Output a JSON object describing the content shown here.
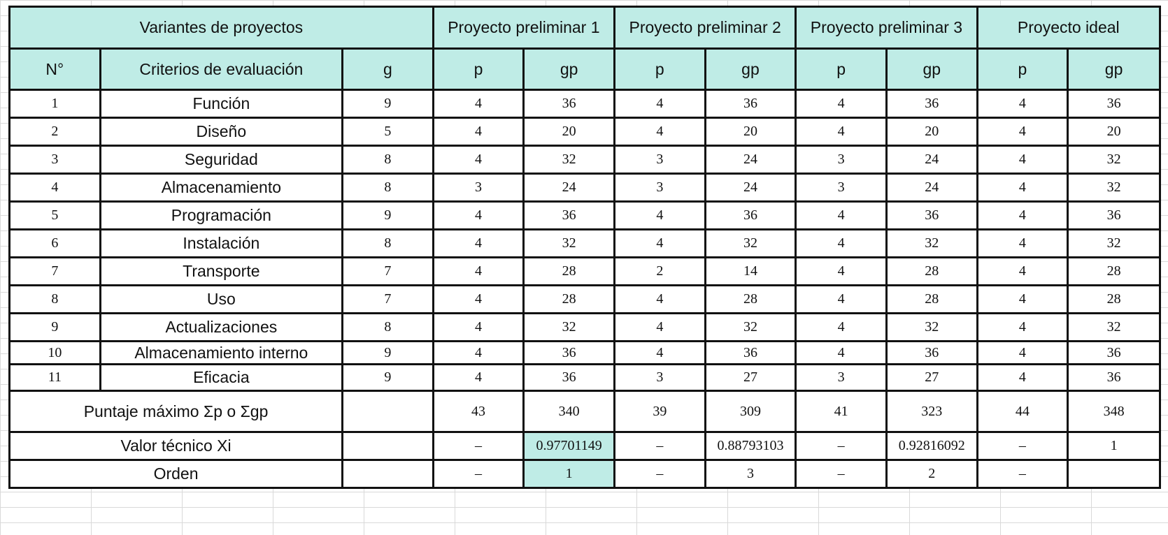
{
  "table": {
    "group_headers": {
      "variants": "Variantes de proyectos",
      "p1": "Proyecto preliminar 1",
      "p2": "Proyecto preliminar 2",
      "p3": "Proyecto preliminar 3",
      "ideal": "Proyecto ideal"
    },
    "col_headers": {
      "n": "N°",
      "criteria": "Criterios de evaluación",
      "g": "g",
      "p": "p",
      "gp": "gp"
    },
    "rows": [
      {
        "n": "1",
        "criterio": "Función",
        "g": "9",
        "p1": "4",
        "gp1": "36",
        "p2": "4",
        "gp2": "36",
        "p3": "4",
        "gp3": "36",
        "pi": "4",
        "gpi": "36"
      },
      {
        "n": "2",
        "criterio": "Diseño",
        "g": "5",
        "p1": "4",
        "gp1": "20",
        "p2": "4",
        "gp2": "20",
        "p3": "4",
        "gp3": "20",
        "pi": "4",
        "gpi": "20"
      },
      {
        "n": "3",
        "criterio": "Seguridad",
        "g": "8",
        "p1": "4",
        "gp1": "32",
        "p2": "3",
        "gp2": "24",
        "p3": "3",
        "gp3": "24",
        "pi": "4",
        "gpi": "32"
      },
      {
        "n": "4",
        "criterio": "Almacenamiento",
        "g": "8",
        "p1": "3",
        "gp1": "24",
        "p2": "3",
        "gp2": "24",
        "p3": "3",
        "gp3": "24",
        "pi": "4",
        "gpi": "32"
      },
      {
        "n": "5",
        "criterio": "Programación",
        "g": "9",
        "p1": "4",
        "gp1": "36",
        "p2": "4",
        "gp2": "36",
        "p3": "4",
        "gp3": "36",
        "pi": "4",
        "gpi": "36"
      },
      {
        "n": "6",
        "criterio": "Instalación",
        "g": "8",
        "p1": "4",
        "gp1": "32",
        "p2": "4",
        "gp2": "32",
        "p3": "4",
        "gp3": "32",
        "pi": "4",
        "gpi": "32"
      },
      {
        "n": "7",
        "criterio": "Transporte",
        "g": "7",
        "p1": "4",
        "gp1": "28",
        "p2": "2",
        "gp2": "14",
        "p3": "4",
        "gp3": "28",
        "pi": "4",
        "gpi": "28"
      },
      {
        "n": "8",
        "criterio": "Uso",
        "g": "7",
        "p1": "4",
        "gp1": "28",
        "p2": "4",
        "gp2": "28",
        "p3": "4",
        "gp3": "28",
        "pi": "4",
        "gpi": "28"
      },
      {
        "n": "9",
        "criterio": "Actualizaciones",
        "g": "8",
        "p1": "4",
        "gp1": "32",
        "p2": "4",
        "gp2": "32",
        "p3": "4",
        "gp3": "32",
        "pi": "4",
        "gpi": "32"
      },
      {
        "n": "10",
        "criterio": "Almacenamiento interno",
        "g": "9",
        "p1": "4",
        "gp1": "36",
        "p2": "4",
        "gp2": "36",
        "p3": "4",
        "gp3": "36",
        "pi": "4",
        "gpi": "36"
      },
      {
        "n": "11",
        "criterio": "Eficacia",
        "g": "9",
        "p1": "4",
        "gp1": "36",
        "p2": "3",
        "gp2": "27",
        "p3": "3",
        "gp3": "27",
        "pi": "4",
        "gpi": "36"
      }
    ],
    "max_score": {
      "label": "Puntaje máximo Σp o Σgp",
      "p1": "43",
      "gp1": "340",
      "p2": "39",
      "gp2": "309",
      "p3": "41",
      "gp3": "323",
      "pi": "44",
      "gpi": "348"
    },
    "technical_value": {
      "label": "Valor técnico Xi",
      "p1": "–",
      "gp1": "0.97701149",
      "p2": "–",
      "gp2": "0.88793103",
      "p3": "–",
      "gp3": "0.92816092",
      "pi": "–",
      "gpi": "1"
    },
    "order": {
      "label": "Orden",
      "p1": "–",
      "gp1": "1",
      "p2": "–",
      "gp2": "3",
      "p3": "–",
      "gp3": "2",
      "pi": "–",
      "gpi": ""
    },
    "highlight_color": "#bfece6"
  }
}
